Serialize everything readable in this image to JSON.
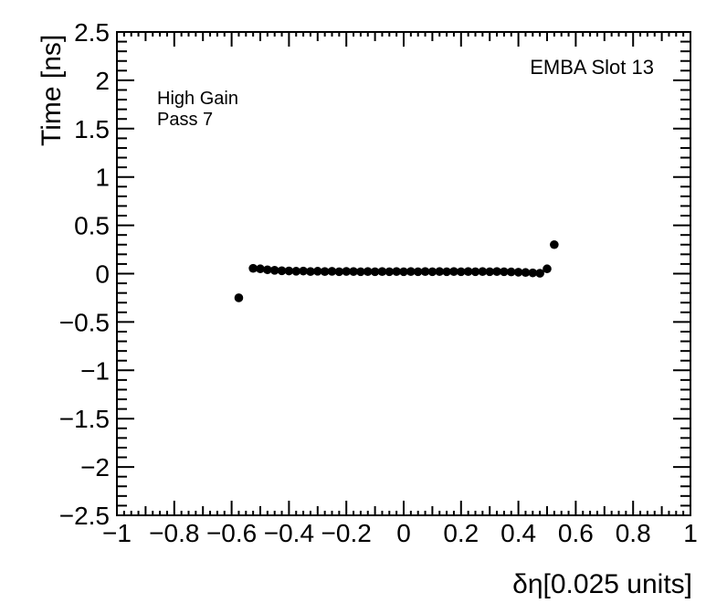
{
  "chart_data": {
    "type": "scatter",
    "title": "",
    "xlabel": "δη[0.025 units]",
    "ylabel": "Time [ns]",
    "xlim": [
      -1,
      1
    ],
    "ylim": [
      -2.5,
      2.5
    ],
    "grid": false,
    "legend": false,
    "frame_color": "#000000",
    "background": "#ffffff",
    "marker": {
      "shape": "circle",
      "color": "#000000",
      "radius_px": 4.8
    },
    "x_axis": {
      "major_step": 0.2,
      "medium_step": 0.1,
      "minor_step": 0.025,
      "tick_labels": [
        "−1",
        "−0.8",
        "−0.6",
        "−0.4",
        "−0.2",
        "0",
        "0.2",
        "0.4",
        "0.6",
        "0.8",
        "1"
      ]
    },
    "y_axis": {
      "major_step": 0.5,
      "minor_step": 0.1,
      "tick_labels": [
        "−2.5",
        "−2",
        "−1.5",
        "−1",
        "−0.5",
        "0",
        "0.5",
        "1",
        "1.5",
        "2",
        "2.5"
      ]
    },
    "annotations": {
      "corner": "EMBA Slot 13",
      "line1": "High Gain",
      "line2": "Pass 7"
    },
    "points": [
      [
        -0.575,
        -0.25
      ],
      [
        -0.525,
        0.055
      ],
      [
        -0.5,
        0.05
      ],
      [
        -0.475,
        0.04
      ],
      [
        -0.45,
        0.035
      ],
      [
        -0.425,
        0.03
      ],
      [
        -0.4,
        0.028
      ],
      [
        -0.375,
        0.025
      ],
      [
        -0.35,
        0.027
      ],
      [
        -0.325,
        0.022
      ],
      [
        -0.3,
        0.025
      ],
      [
        -0.275,
        0.022
      ],
      [
        -0.25,
        0.024
      ],
      [
        -0.225,
        0.02
      ],
      [
        -0.2,
        0.023
      ],
      [
        -0.175,
        0.022
      ],
      [
        -0.15,
        0.02
      ],
      [
        -0.125,
        0.022
      ],
      [
        -0.1,
        0.02
      ],
      [
        -0.075,
        0.022
      ],
      [
        -0.05,
        0.02
      ],
      [
        -0.025,
        0.022
      ],
      [
        0.0,
        0.02
      ],
      [
        0.025,
        0.022
      ],
      [
        0.05,
        0.02
      ],
      [
        0.075,
        0.022
      ],
      [
        0.1,
        0.02
      ],
      [
        0.125,
        0.022
      ],
      [
        0.15,
        0.02
      ],
      [
        0.175,
        0.022
      ],
      [
        0.2,
        0.02
      ],
      [
        0.225,
        0.022
      ],
      [
        0.25,
        0.02
      ],
      [
        0.275,
        0.022
      ],
      [
        0.3,
        0.02
      ],
      [
        0.325,
        0.022
      ],
      [
        0.35,
        0.02
      ],
      [
        0.375,
        0.018
      ],
      [
        0.4,
        0.015
      ],
      [
        0.425,
        0.012
      ],
      [
        0.45,
        0.008
      ],
      [
        0.475,
        0.004
      ],
      [
        0.5,
        0.05
      ],
      [
        0.525,
        0.3
      ]
    ]
  }
}
